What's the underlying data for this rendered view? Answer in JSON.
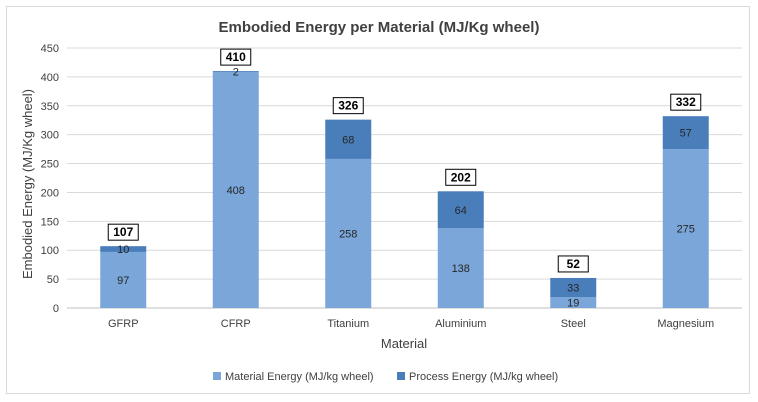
{
  "chart_data": {
    "type": "bar",
    "stacked": true,
    "title": "Embodied Energy per Material (MJ/Kg wheel)",
    "xlabel": "Material",
    "ylabel": "Embodied Energy (MJ/Kg wheel)",
    "ylim": [
      0,
      450
    ],
    "yticks": [
      "0",
      "50",
      "100",
      "150",
      "200",
      "250",
      "300",
      "350",
      "400",
      "450"
    ],
    "categories": [
      "GFRP",
      "CFRP",
      "Titanium",
      "Aluminium",
      "Steel",
      "Magnesium"
    ],
    "series": [
      {
        "name": "Material Energy (MJ/kg wheel)",
        "color": "#7aa6d9",
        "values": [
          97,
          408,
          258,
          138,
          19,
          275
        ]
      },
      {
        "name": "Process Energy (MJ/kg wheel)",
        "color": "#4a7ebb",
        "values": [
          10,
          2,
          68,
          64,
          33,
          57
        ]
      }
    ],
    "totals": [
      107,
      410,
      326,
      202,
      52,
      332
    ],
    "grid": true,
    "legend": "bottom"
  }
}
